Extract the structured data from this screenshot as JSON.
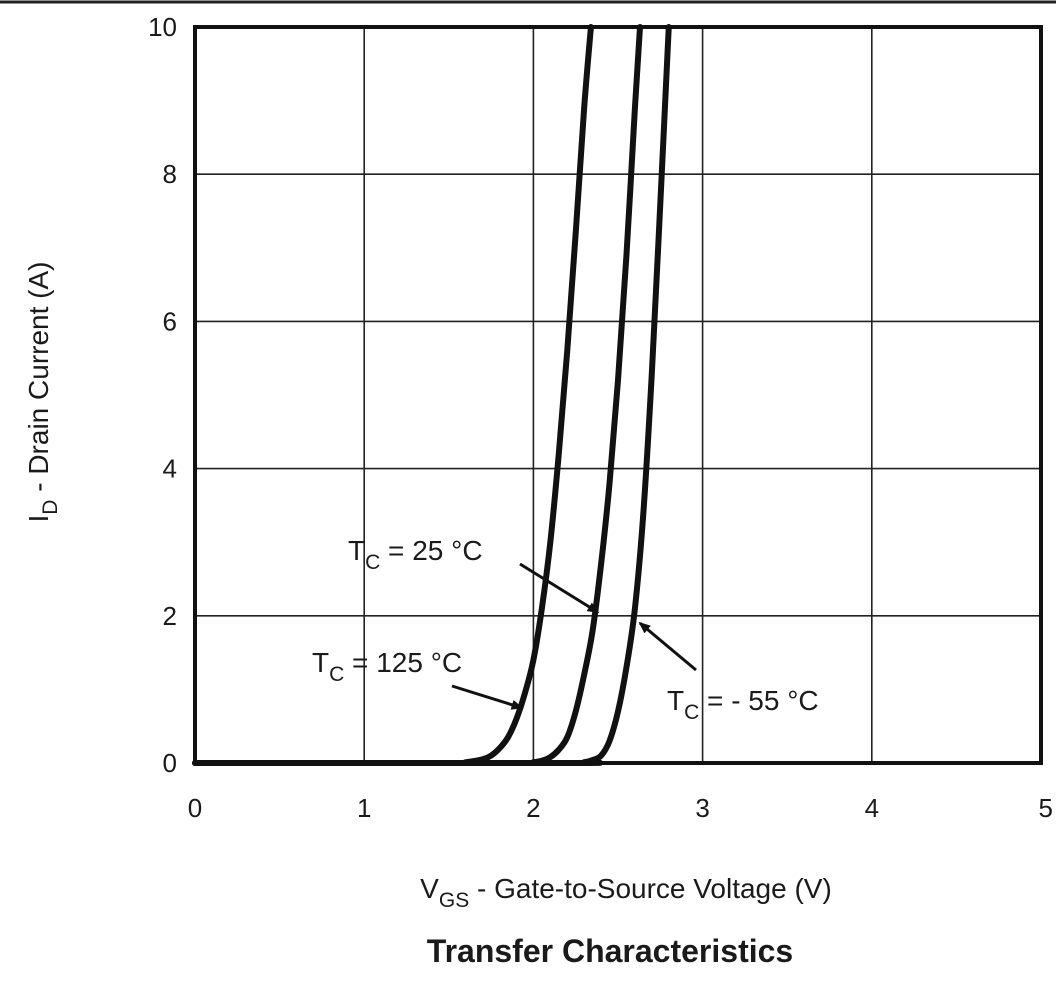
{
  "chart_data": {
    "type": "line",
    "title": "Transfer Characteristics",
    "xlabel": {
      "main": "V",
      "sub": "GS",
      "rest": " - Gate-to-Source Voltage (V)"
    },
    "ylabel": {
      "main": "I",
      "sub": "D",
      "rest": " - Drain Current (A)"
    },
    "xlim": [
      0,
      5
    ],
    "ylim": [
      0,
      10
    ],
    "xticks": [
      0,
      1,
      2,
      3,
      4,
      5
    ],
    "yticks": [
      0,
      2,
      4,
      6,
      8,
      10
    ],
    "grid": true,
    "colors": {
      "line": "#111111",
      "grid": "#222222",
      "text": "#1a1a1a"
    },
    "series": [
      {
        "name": "TC = 125 °C",
        "label": {
          "main": "T",
          "sub": "C",
          "rest": " = 125 °C"
        },
        "x": [
          0.0,
          1.5,
          1.6,
          1.7,
          1.75,
          1.8,
          1.85,
          1.9,
          1.95,
          2.0,
          2.05,
          2.1,
          2.15,
          2.2,
          2.25,
          2.3,
          2.34
        ],
        "y": [
          0.0,
          0.0,
          0.01,
          0.05,
          0.1,
          0.2,
          0.35,
          0.6,
          0.95,
          1.4,
          2.1,
          3.0,
          4.2,
          5.6,
          7.2,
          8.9,
          10.0
        ]
      },
      {
        "name": "TC = 25 °C",
        "label": {
          "main": "T",
          "sub": "C",
          "rest": " = 25 °C"
        },
        "x": [
          0.0,
          1.9,
          2.0,
          2.05,
          2.1,
          2.15,
          2.2,
          2.25,
          2.3,
          2.35,
          2.4,
          2.45,
          2.5,
          2.55,
          2.6,
          2.63
        ],
        "y": [
          0.0,
          0.0,
          0.01,
          0.03,
          0.08,
          0.18,
          0.35,
          0.7,
          1.2,
          1.8,
          2.7,
          3.8,
          5.2,
          6.9,
          8.9,
          10.0
        ]
      },
      {
        "name": "TC = - 55 °C",
        "label": {
          "main": "T",
          "sub": "C",
          "rest": " = - 55 °C"
        },
        "x": [
          0.0,
          2.2,
          2.3,
          2.35,
          2.4,
          2.45,
          2.5,
          2.55,
          2.6,
          2.65,
          2.7,
          2.75,
          2.8
        ],
        "y": [
          0.0,
          0.0,
          0.01,
          0.04,
          0.1,
          0.3,
          0.7,
          1.3,
          2.1,
          3.4,
          5.3,
          7.6,
          10.0
        ]
      }
    ],
    "annotations": [
      {
        "series": 0,
        "arrow_to": [
          1.93,
          0.75
        ]
      },
      {
        "series": 1,
        "arrow_to": [
          2.38,
          2.05
        ]
      },
      {
        "series": 2,
        "arrow_to": [
          2.63,
          1.9
        ]
      }
    ]
  }
}
